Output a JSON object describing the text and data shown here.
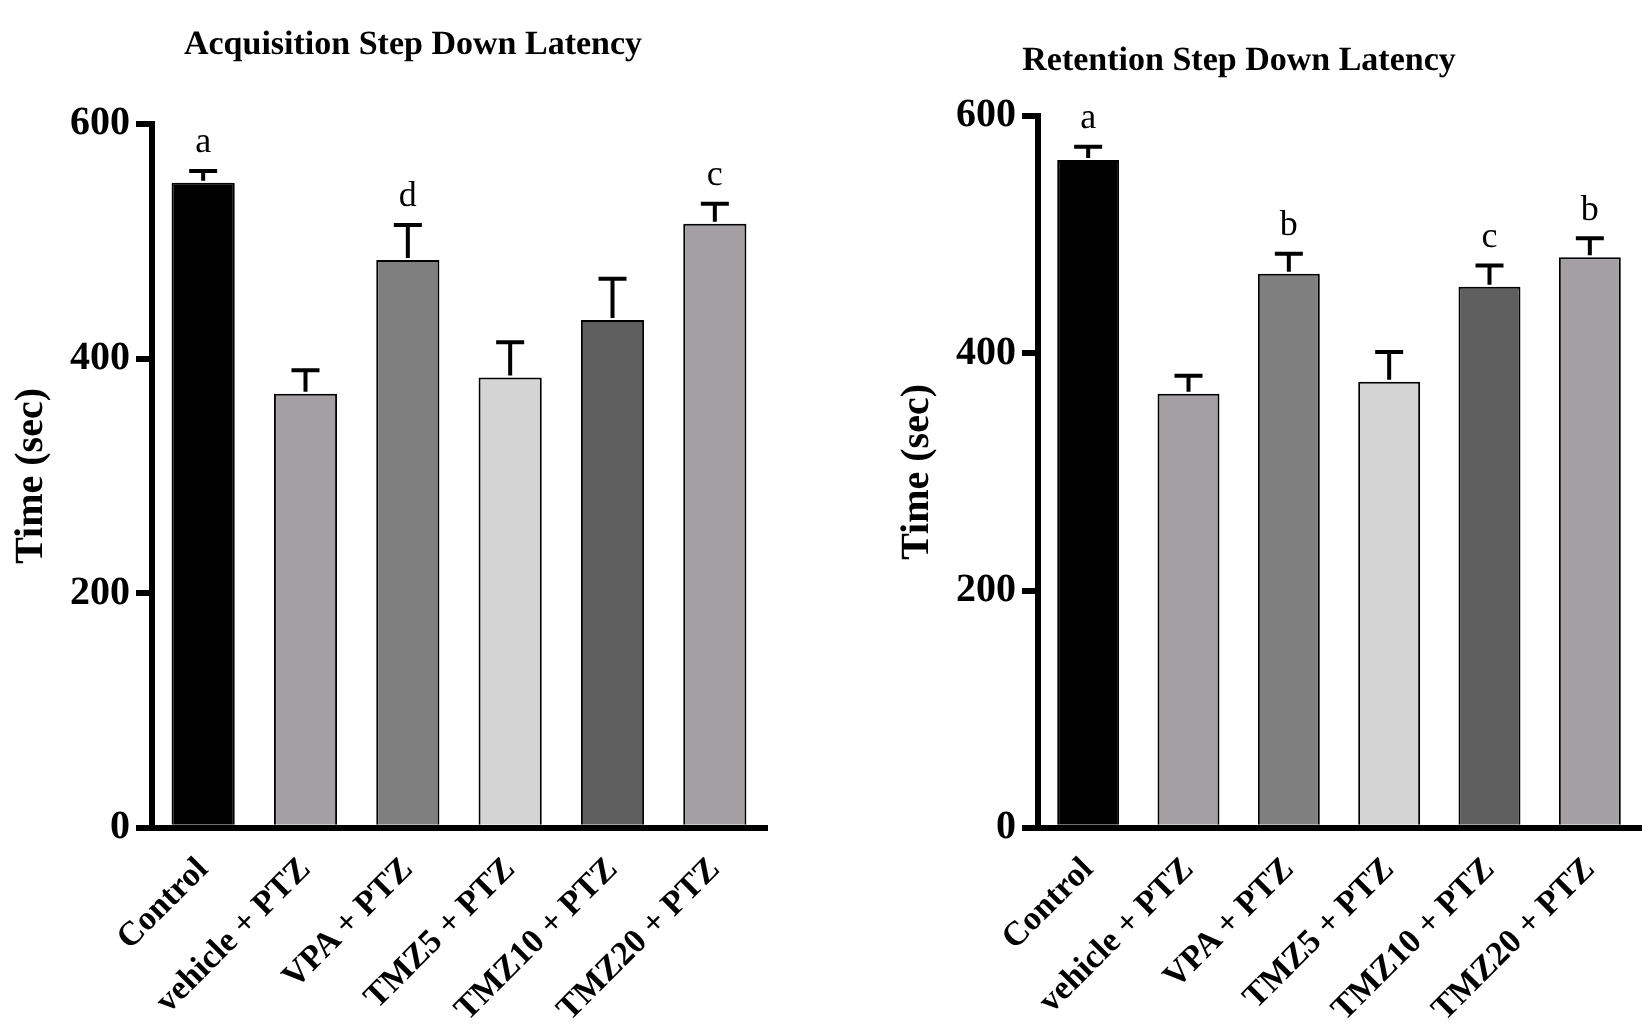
{
  "chart_data": [
    {
      "type": "bar",
      "title": "Acquisition Step Down Latency",
      "ylabel": "Time (sec)",
      "categories": [
        "Control",
        "vehicle + PTZ",
        "VPA + PTZ",
        "TMZ5 + PTZ",
        "TMZ10 + PTZ",
        "TMZ20 + PTZ"
      ],
      "values": [
        550,
        370,
        484,
        384,
        433,
        515
      ],
      "errors": [
        10,
        20,
        30,
        30,
        35,
        17
      ],
      "colors": [
        "#000000",
        "#a39fa3",
        "#7f7f7f",
        "#d4d4d4",
        "#5f5f5f",
        "#a39fa3"
      ],
      "ylim": [
        0,
        600
      ],
      "yticks": [
        0,
        200,
        400,
        600
      ],
      "grid": false,
      "legend": false,
      "annotations": [
        {
          "text": "a",
          "x": "Control",
          "y": 560
        },
        {
          "text": "d",
          "x": "VPA + PTZ",
          "y": 514
        },
        {
          "text": "c",
          "x": "TMZ20 + PTZ",
          "y": 532
        }
      ]
    },
    {
      "type": "bar",
      "title": "Retention Step Down Latency",
      "ylabel": "Time (sec)",
      "categories": [
        "Control",
        "vehicle + PTZ",
        "VPA + PTZ",
        "TMZ5 + PTZ",
        "TMZ10 + PTZ",
        "TMZ20 + PTZ"
      ],
      "values": [
        563,
        366,
        467,
        376,
        456,
        481
      ],
      "errors": [
        11,
        15,
        17,
        25,
        18,
        16
      ],
      "colors": [
        "#000000",
        "#a39fa3",
        "#7f7f7f",
        "#d4d4d4",
        "#5f5f5f",
        "#a39fa3"
      ],
      "ylim": [
        0,
        600
      ],
      "yticks": [
        0,
        200,
        400,
        600
      ],
      "grid": false,
      "legend": false,
      "annotations": [
        {
          "text": "a",
          "x": "Control",
          "y": 574
        },
        {
          "text": "b",
          "x": "VPA + PTZ",
          "y": 484
        },
        {
          "text": "c",
          "x": "TMZ10 + PTZ",
          "y": 474
        },
        {
          "text": "b",
          "x": "TMZ20 + PTZ",
          "y": 497
        }
      ]
    }
  ]
}
